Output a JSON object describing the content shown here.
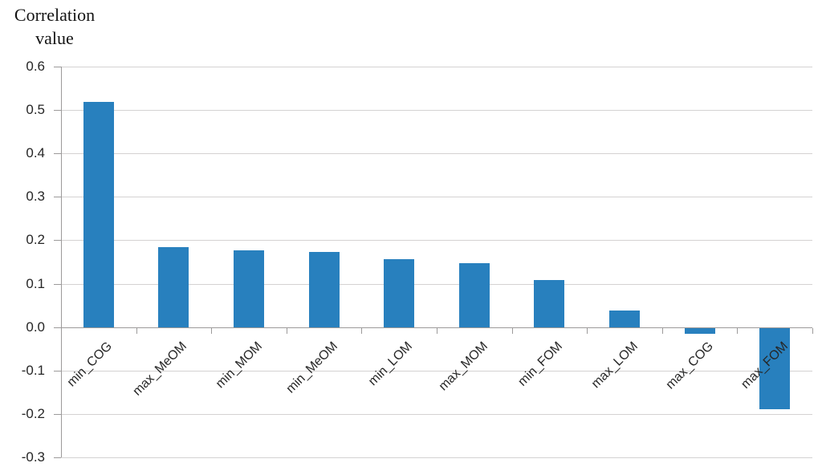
{
  "chart_data": {
    "type": "bar",
    "title": "Correlation value",
    "title_lines": [
      "Correlation",
      "value"
    ],
    "categories": [
      "min_COG",
      "max_MeOM",
      "min_MOM",
      "min_MeOM",
      "min_LOM",
      "max_MOM",
      "min_FOM",
      "max_LOM",
      "max_COG",
      "max_FOM"
    ],
    "values": [
      0.518,
      0.185,
      0.176,
      0.174,
      0.157,
      0.147,
      0.108,
      0.038,
      -0.014,
      -0.188
    ],
    "ylim": [
      -0.3,
      0.6
    ],
    "ytick_step": 0.1,
    "y_tick_labels": [
      "0.6",
      "0.5",
      "0.4",
      "0.3",
      "0.2",
      "0.1",
      "0.0",
      "-0.1",
      "-0.2",
      "-0.3"
    ],
    "xlabel": "",
    "grid": true,
    "legend": false,
    "x_label_rotation_deg": -45,
    "bar_color": "#2880be",
    "gridline_color": "#d4d2d2",
    "axis_color": "#9c9a9a",
    "text_color": "#262626"
  }
}
